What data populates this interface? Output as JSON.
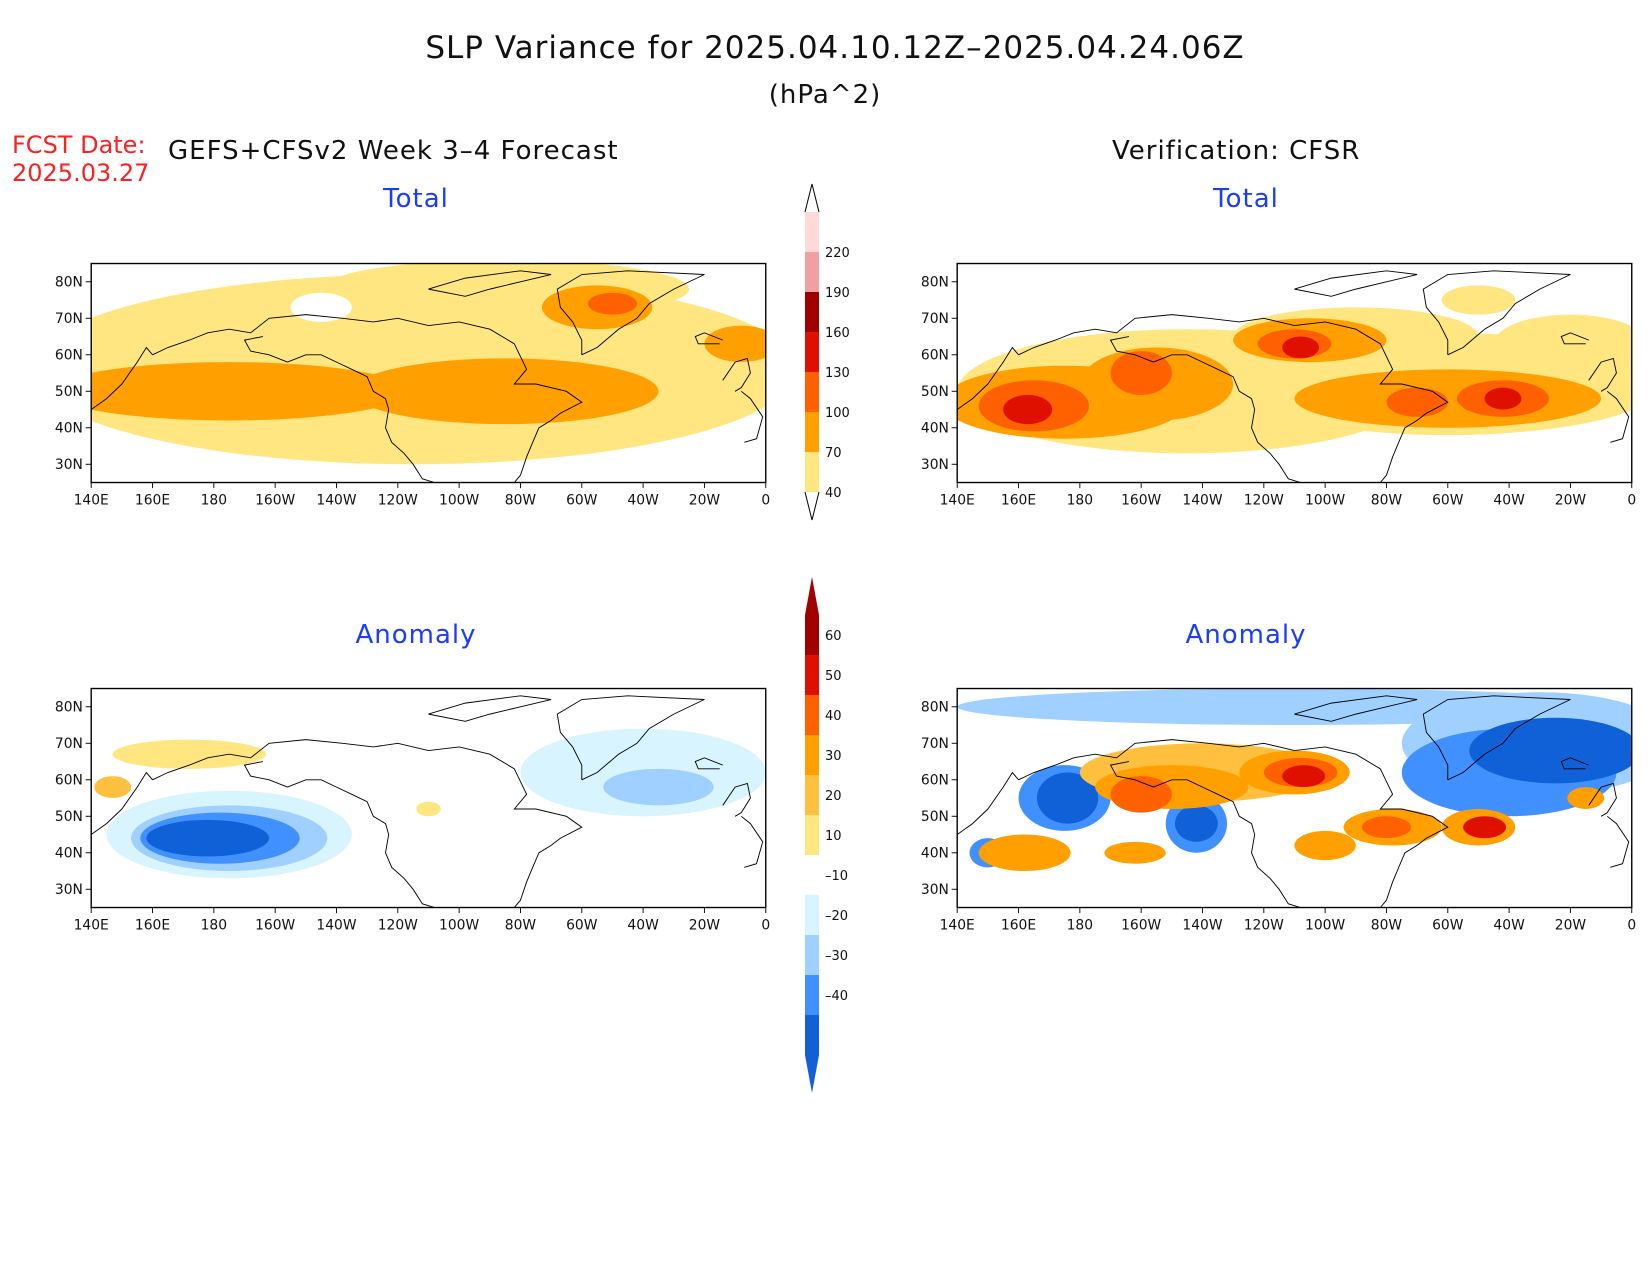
{
  "title": "SLP Variance for 2025.04.10.12Z–2025.04.24.06Z",
  "units": "(hPa^2)",
  "fcst_label": "FCST Date:",
  "fcst_date": "2025.03.27",
  "left_header": "GEFS+CFSv2 Week 3–4 Forecast",
  "right_header": "Verification: CFSR",
  "subtitles": {
    "tl": "Total",
    "tr": "Total",
    "bl": "Anomaly",
    "br": "Anomaly"
  },
  "colors": {
    "title_red": "#ff1f1f",
    "subtitle_blue": "#1a3cff"
  },
  "chart_data": {
    "type": "heatmap",
    "lat_ticks": [
      "80N",
      "70N",
      "60N",
      "50N",
      "40N",
      "30N"
    ],
    "lon_ticks": [
      "140E",
      "160E",
      "180",
      "160W",
      "140W",
      "120W",
      "100W",
      "80W",
      "60W",
      "40W",
      "20W",
      "0"
    ],
    "lat_range": [
      25,
      85
    ],
    "lon_range": [
      140,
      360
    ],
    "total_colorbar": {
      "levels": [
        "40",
        "70",
        "100",
        "130",
        "160",
        "190",
        "220"
      ],
      "colors": [
        "#ffe680",
        "#ffa000",
        "#ff6000",
        "#e01000",
        "#a00000",
        "#f0a0a0",
        "#ffd8d8"
      ]
    },
    "anomaly_colorbar": {
      "levels": [
        "60",
        "50",
        "40",
        "30",
        "20",
        "10",
        "–10",
        "–20",
        "–30",
        "–40"
      ],
      "colors": [
        "#a00000",
        "#e01000",
        "#ff6000",
        "#ffa000",
        "#ffc040",
        "#ffe680",
        "#ffffff",
        "#d8f4ff",
        "#a0d0ff",
        "#4090ff",
        "#1060d8"
      ]
    }
  }
}
